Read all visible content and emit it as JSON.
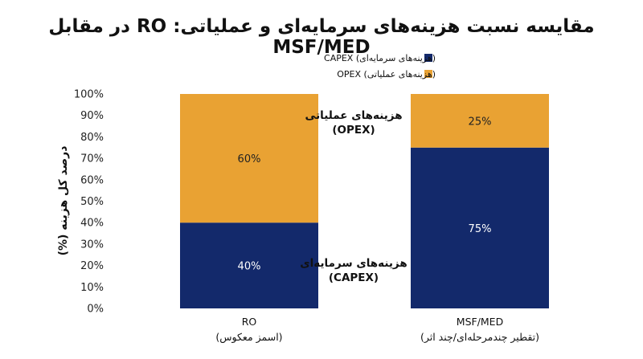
{
  "title": "مقایسه نسبت هزینه‌های سرمایه‌ای و عملیاتی: RO در مقابل MSF/MED",
  "chart_data": {
    "type": "bar",
    "stacked": true,
    "categories": [
      {
        "line1": "RO",
        "line2": "(اسمز معکوس)"
      },
      {
        "line1": "MSF/MED",
        "line2": "(تقطیر چندمرحله‌ای/چند اثر)"
      }
    ],
    "series": [
      {
        "key": "capex",
        "name": "(هزینه‌های سرمایه‌ای) CAPEX",
        "values": [
          40,
          75
        ],
        "color": "#13296b",
        "label_color": "#ffffff"
      },
      {
        "key": "opex",
        "name": "(هزینه‌های عملیاتی) OPEX",
        "values": [
          60,
          25
        ],
        "color": "#e9a233",
        "label_color": "#222222"
      }
    ],
    "value_labels": {
      "capex": [
        "40%",
        "75%"
      ],
      "opex": [
        "60%",
        "25%"
      ]
    },
    "ylabel": "درصد کل هزینه (%)",
    "ylim": [
      0,
      100
    ],
    "yticks": [
      "0%",
      "10%",
      "20%",
      "30%",
      "40%",
      "50%",
      "60%",
      "70%",
      "80%",
      "90%",
      "100%"
    ],
    "grid": false,
    "legend_position": "top-right",
    "annotations": {
      "opex": {
        "line1": "هزینه‌های عملیاتی",
        "line2": "(OPEX)"
      },
      "capex": {
        "line1": "هزینه‌های سرمایه‌ای",
        "line2": "(CAPEX)"
      }
    }
  }
}
